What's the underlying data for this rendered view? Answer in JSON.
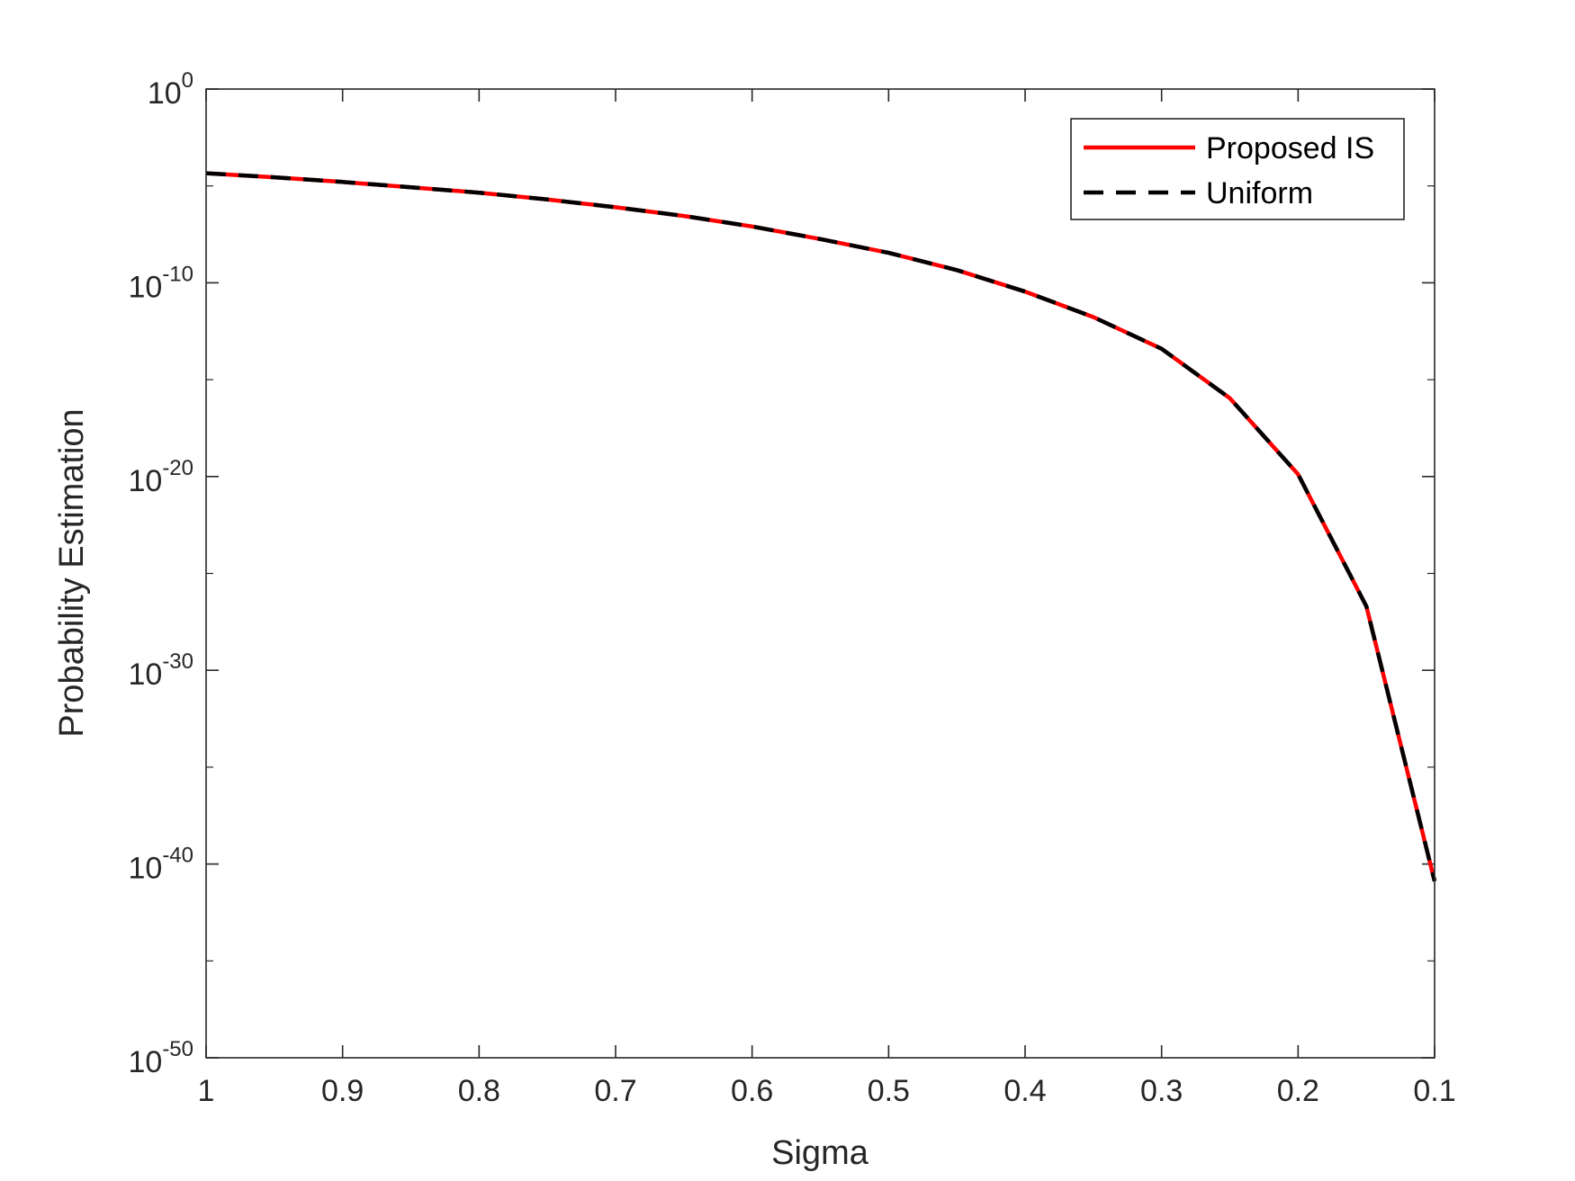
{
  "chart_data": {
    "type": "line",
    "title": "",
    "xlabel": "Sigma",
    "ylabel": "Probability Estimation",
    "x_direction": "reversed",
    "y_scale": "log",
    "xlim": [
      0.1,
      1
    ],
    "ylim": [
      1e-50,
      1
    ],
    "x_ticks": [
      1,
      0.9,
      0.8,
      0.7,
      0.6,
      0.5,
      0.4,
      0.3,
      0.2,
      0.1
    ],
    "x_tick_labels": [
      "1",
      "0.9",
      "0.8",
      "0.7",
      "0.6",
      "0.5",
      "0.4",
      "0.3",
      "0.2",
      "0.1"
    ],
    "y_ticks": [
      {
        "value": 1,
        "base": "10",
        "exp": "0"
      },
      {
        "value": 1e-10,
        "base": "10",
        "exp": "-10"
      },
      {
        "value": 1e-20,
        "base": "10",
        "exp": "-20"
      },
      {
        "value": 1e-30,
        "base": "10",
        "exp": "-30"
      },
      {
        "value": 1e-40,
        "base": "10",
        "exp": "-40"
      },
      {
        "value": 1e-50,
        "base": "10",
        "exp": "-50"
      }
    ],
    "grid": false,
    "legend_position": "top-right",
    "x": [
      1,
      0.95,
      0.9,
      0.85,
      0.8,
      0.75,
      0.7,
      0.65,
      0.6,
      0.55,
      0.5,
      0.45,
      0.4,
      0.35,
      0.3,
      0.25,
      0.2,
      0.15,
      0.1
    ],
    "series": [
      {
        "name": "Proposed IS",
        "color": "#ff0000",
        "style": "solid",
        "values": [
          4.5e-05,
          2.8e-05,
          1.6e-05,
          8.5e-06,
          4.5e-06,
          2e-06,
          7.9e-07,
          2.8e-07,
          8.1e-08,
          1.8e-08,
          3.5e-09,
          4.5e-10,
          3.5e-11,
          1.7e-12,
          3.9e-14,
          1.1e-16,
          1.3e-20,
          2e-27,
          1.3e-41
        ]
      },
      {
        "name": "Uniform",
        "color": "#000000",
        "style": "dashed",
        "values": [
          4.5e-05,
          2.8e-05,
          1.6e-05,
          8.5e-06,
          4.5e-06,
          2e-06,
          7.9e-07,
          2.8e-07,
          8.1e-08,
          1.8e-08,
          3.5e-09,
          4.5e-10,
          3.5e-11,
          1.7e-12,
          3.9e-14,
          1.1e-16,
          1.3e-20,
          2e-27,
          1.3e-41
        ]
      }
    ]
  }
}
